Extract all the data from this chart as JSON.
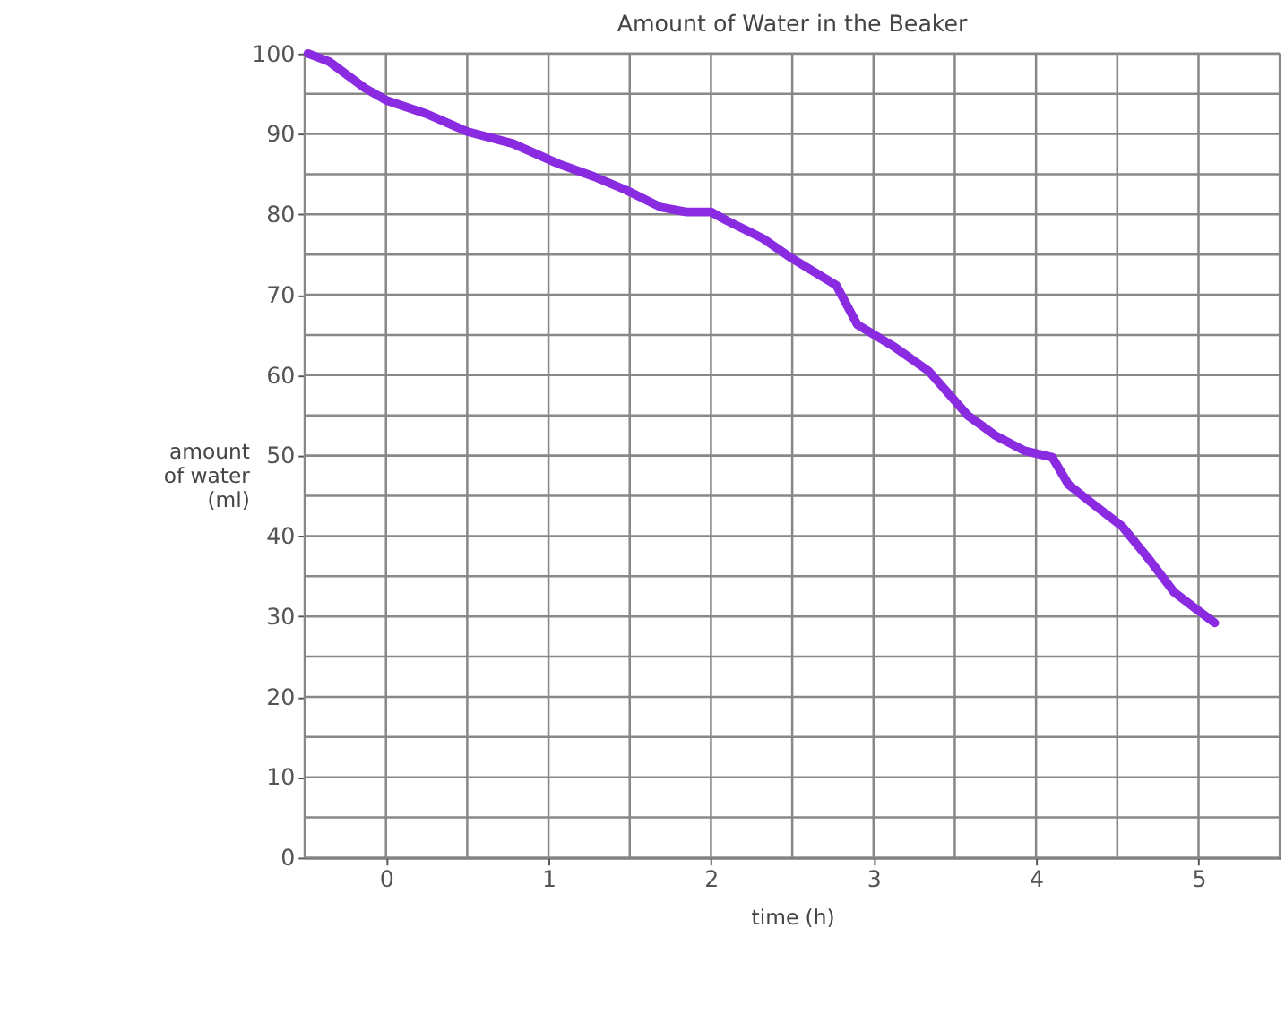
{
  "chart_data": {
    "type": "line",
    "title": "Amount of Water in the Beaker",
    "xlabel": "time (h)",
    "ylabel": "amount\nof water\n(ml)",
    "x": [
      -0.48,
      -0.35,
      -0.13,
      0,
      0.25,
      0.5,
      0.78,
      1.06,
      1.28,
      1.48,
      1.69,
      1.85,
      2,
      2.1,
      2.32,
      2.5,
      2.77,
      2.9,
      3.13,
      3.34,
      3.58,
      3.75,
      3.93,
      4.1,
      4.2,
      4.35,
      4.53,
      4.7,
      4.85,
      4.98,
      5.1
    ],
    "series": [
      {
        "color": "#8a2be2",
        "values": [
          100,
          99,
          95.7,
          94.2,
          92.5,
          90.3,
          88.8,
          86.3,
          84.7,
          83,
          80.9,
          80.3,
          80.3,
          79.2,
          77,
          74.5,
          71.2,
          66.3,
          63.5,
          60.5,
          55,
          52.5,
          50.6,
          49.8,
          46.4,
          44,
          41.2,
          37,
          33,
          31,
          29.2
        ]
      }
    ],
    "xlim": [
      -0.5,
      5.5
    ],
    "xticks": [
      0,
      1,
      2,
      3,
      4,
      5
    ],
    "ylim": [
      0,
      100
    ],
    "yticks": [
      0,
      10,
      20,
      30,
      40,
      50,
      60,
      70,
      80,
      90,
      100
    ],
    "grid": true,
    "marker": "none",
    "line_style": "solid"
  }
}
